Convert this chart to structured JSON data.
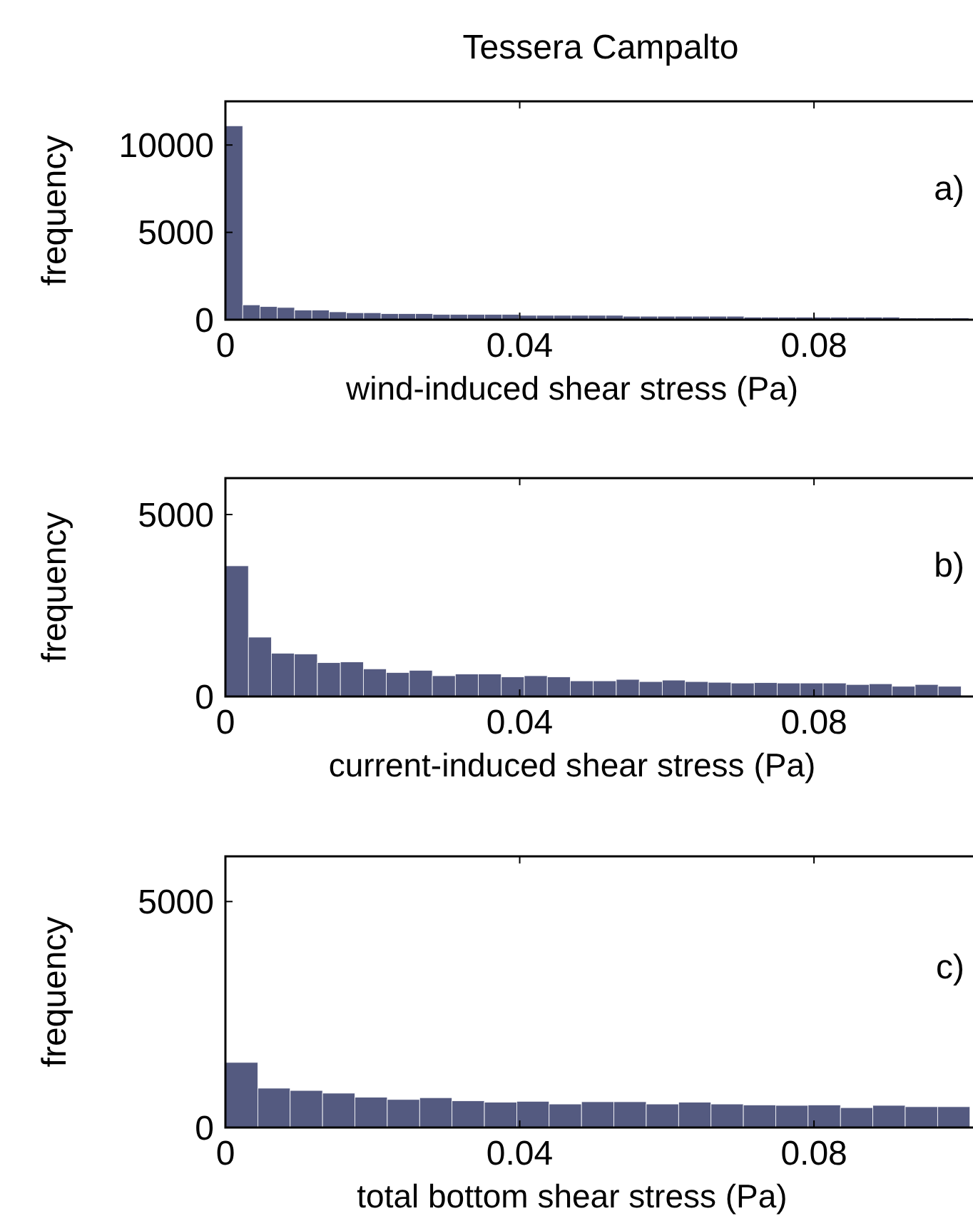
{
  "chart_data": [
    {
      "type": "histogram",
      "title": "Tessera Campalto",
      "xlabel": "wind-induced shear stress (Pa)",
      "ylabel": "frequency",
      "annotations": [
        "a)"
      ],
      "color": "#545a80",
      "bins": [
        0,
        0.00235,
        0.0047,
        0.00705,
        0.0094,
        0.01175,
        0.0141,
        0.01645,
        0.0188,
        0.02115,
        0.0235,
        0.02585,
        0.0282,
        0.03055,
        0.0329,
        0.03525,
        0.0376,
        0.03995,
        0.0423,
        0.04465,
        0.047,
        0.04935,
        0.0517,
        0.05405,
        0.0564,
        0.05875,
        0.0611,
        0.06345,
        0.0658,
        0.06815,
        0.0705,
        0.07285,
        0.0752,
        0.07755,
        0.0799,
        0.08225,
        0.0846,
        0.08695,
        0.0893,
        0.09165,
        0.094,
        0.09635,
        0.0987,
        0.10105
      ],
      "values": [
        11100,
        850,
        750,
        700,
        550,
        550,
        450,
        400,
        400,
        350,
        350,
        350,
        300,
        300,
        300,
        300,
        300,
        250,
        250,
        250,
        250,
        250,
        250,
        200,
        200,
        200,
        200,
        200,
        200,
        200,
        150,
        150,
        150,
        150,
        150,
        150,
        150,
        150,
        150,
        100,
        100,
        100,
        100
      ],
      "xlim": [
        0,
        0.102
      ],
      "xticks": [
        0,
        0.04,
        0.08
      ],
      "ylim": [
        0,
        12500
      ],
      "yticks": [
        0,
        5000,
        10000
      ]
    },
    {
      "type": "histogram",
      "xlabel": "current-induced shear stress (Pa)",
      "ylabel": "frequency",
      "annotations": [
        "b)"
      ],
      "color": "#545a80",
      "bins": [
        0,
        0.003125,
        0.00625,
        0.009375,
        0.0125,
        0.015625,
        0.01875,
        0.021875,
        0.025,
        0.028125,
        0.03125,
        0.034375,
        0.0375,
        0.040625,
        0.04375,
        0.046875,
        0.05,
        0.053125,
        0.05625,
        0.059375,
        0.0625,
        0.065625,
        0.06875,
        0.071875,
        0.075,
        0.078125,
        0.08125,
        0.084375,
        0.0875,
        0.090625,
        0.09375,
        0.096875,
        0.1
      ],
      "values": [
        3590,
        1630,
        1190,
        1170,
        930,
        950,
        760,
        660,
        720,
        570,
        620,
        620,
        540,
        570,
        540,
        430,
        430,
        470,
        410,
        450,
        410,
        390,
        370,
        380,
        370,
        370,
        370,
        330,
        350,
        280,
        330,
        280
      ],
      "xlim": [
        0,
        0.102
      ],
      "xticks": [
        0,
        0.04,
        0.08
      ],
      "ylim": [
        0,
        6000
      ],
      "yticks": [
        0,
        5000
      ]
    },
    {
      "type": "histogram",
      "xlabel": "total bottom shear stress (Pa)",
      "ylabel": "frequency",
      "annotations": [
        "c)"
      ],
      "color": "#545a80",
      "bins": [
        0,
        0.0044,
        0.0088,
        0.0132,
        0.0176,
        0.022,
        0.0264,
        0.0308,
        0.0352,
        0.0396,
        0.044,
        0.0484,
        0.0528,
        0.0572,
        0.0616,
        0.066,
        0.0704,
        0.0748,
        0.0792,
        0.0836,
        0.088,
        0.0924,
        0.0968,
        0.1012
      ],
      "values": [
        1440,
        870,
        820,
        760,
        670,
        620,
        660,
        590,
        560,
        580,
        520,
        570,
        570,
        520,
        560,
        520,
        500,
        490,
        500,
        440,
        490,
        460,
        460
      ],
      "xlim": [
        0,
        0.102
      ],
      "xticks": [
        0,
        0.04,
        0.08
      ],
      "ylim": [
        0,
        6000
      ],
      "yticks": [
        0,
        5000
      ]
    }
  ]
}
